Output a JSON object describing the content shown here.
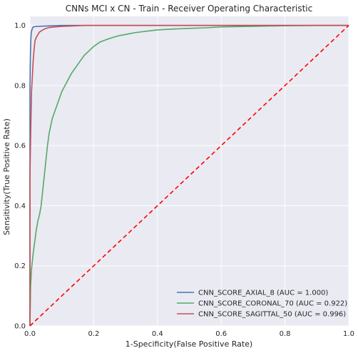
{
  "chart_data": {
    "type": "line",
    "title": "CNNs MCI x CN - Train - Receiver Operating Characteristic",
    "xlabel": "1-Specificity(False Positive Rate)",
    "ylabel": "Sensitivity(True Positive Rate)",
    "xlim": [
      0,
      1
    ],
    "ylim": [
      0,
      1.03
    ],
    "xticks": [
      "0.0",
      "0.2",
      "0.4",
      "0.6",
      "0.8",
      "1.0"
    ],
    "yticks": [
      "0.0",
      "0.2",
      "0.4",
      "0.6",
      "0.8",
      "1.0"
    ],
    "grid": true,
    "legend_position": "lower-right",
    "series": [
      {
        "name": "CNN_SCORE_AXIAL_8 (AUC = 1.000)",
        "color": "#4c72b0",
        "x": [
          0,
          0,
          0.001,
          0.002,
          0.003,
          0.004,
          0.006,
          0.008,
          0.01,
          0.02,
          0.05,
          0.1,
          0.2,
          0.5,
          1.0
        ],
        "y": [
          0,
          0.78,
          0.88,
          0.93,
          0.96,
          0.975,
          0.985,
          0.99,
          0.995,
          0.997,
          0.998,
          1.0,
          1.0,
          1.0,
          1.0
        ]
      },
      {
        "name": "CNN_SCORE_CORONAL_70 (AUC = 0.922)",
        "color": "#55a868",
        "x": [
          0,
          0.002,
          0.005,
          0.01,
          0.015,
          0.02,
          0.025,
          0.03,
          0.035,
          0.04,
          0.045,
          0.05,
          0.055,
          0.06,
          0.07,
          0.08,
          0.09,
          0.1,
          0.11,
          0.12,
          0.13,
          0.14,
          0.15,
          0.16,
          0.17,
          0.18,
          0.19,
          0.2,
          0.22,
          0.24,
          0.26,
          0.28,
          0.3,
          0.33,
          0.36,
          0.4,
          0.45,
          0.5,
          0.55,
          0.6,
          0.65,
          0.7,
          0.75,
          0.8,
          0.9,
          1.0
        ],
        "y": [
          0,
          0.13,
          0.19,
          0.24,
          0.28,
          0.32,
          0.35,
          0.37,
          0.4,
          0.45,
          0.5,
          0.55,
          0.6,
          0.64,
          0.69,
          0.72,
          0.75,
          0.78,
          0.8,
          0.82,
          0.84,
          0.855,
          0.87,
          0.885,
          0.9,
          0.91,
          0.92,
          0.93,
          0.945,
          0.953,
          0.96,
          0.966,
          0.97,
          0.976,
          0.98,
          0.985,
          0.988,
          0.99,
          0.992,
          0.995,
          0.996,
          0.997,
          0.998,
          0.999,
          1.0,
          1.0
        ]
      },
      {
        "name": "CNN_SCORE_SAGITTAL_50 (AUC = 0.996)",
        "color": "#c44e52",
        "x": [
          0,
          0,
          0.003,
          0.005,
          0.008,
          0.01,
          0.013,
          0.016,
          0.02,
          0.025,
          0.03,
          0.04,
          0.05,
          0.06,
          0.08,
          0.1,
          0.13,
          0.17,
          0.2,
          0.3,
          0.5,
          0.8,
          1.0
        ],
        "y": [
          0,
          0.5,
          0.68,
          0.78,
          0.84,
          0.88,
          0.92,
          0.95,
          0.96,
          0.97,
          0.978,
          0.985,
          0.99,
          0.993,
          0.995,
          0.997,
          0.998,
          1.0,
          1.0,
          1.0,
          1.0,
          1.0,
          1.0
        ]
      },
      {
        "name": "",
        "color": "#ff0000",
        "dashed": true,
        "x": [
          0,
          1
        ],
        "y": [
          0,
          1
        ]
      }
    ]
  }
}
